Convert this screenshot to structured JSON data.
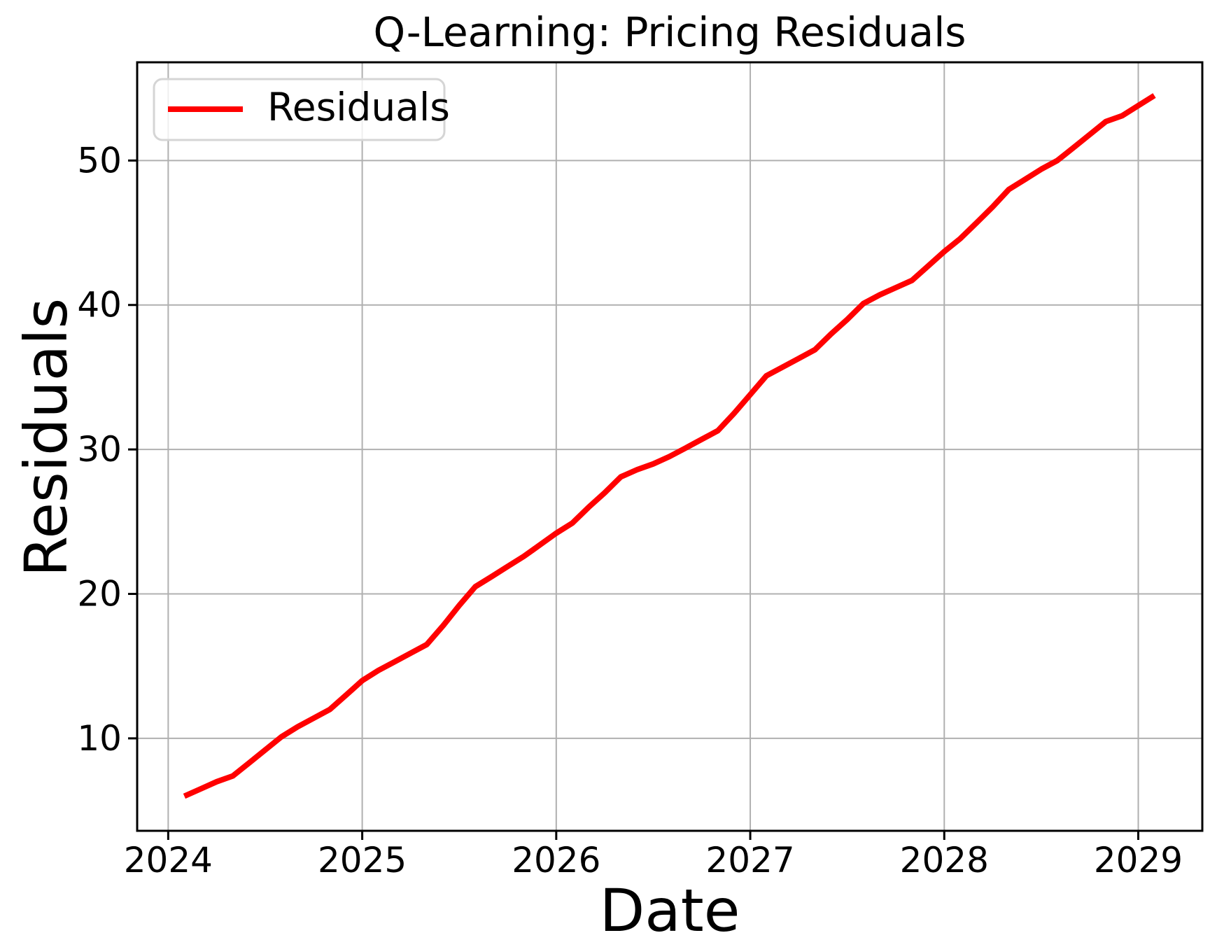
{
  "title": "Q-Learning: Pricing Residuals",
  "x_axis_label": "Date",
  "y_axis_label": "Residuals",
  "legend": {
    "position": "upper left",
    "entries": [
      {
        "label": "Residuals",
        "color": "#ff0000"
      }
    ]
  },
  "colors": {
    "line": "#ff0000",
    "grid": "#b0b0b0",
    "frame": "#000000",
    "background": "#ffffff",
    "legend_border": "#d5d5d5",
    "text": "#000000"
  },
  "chart_data": {
    "type": "line",
    "title": "Q-Learning: Pricing Residuals",
    "xlabel": "Date",
    "ylabel": "Residuals",
    "grid": true,
    "legend_position": "upper left",
    "xlim": [
      2023.84,
      2029.33
    ],
    "ylim": [
      3.6,
      56.8
    ],
    "x_ticks": {
      "positions": [
        2024,
        2025,
        2026,
        2027,
        2028,
        2029
      ],
      "labels": [
        "2024",
        "2025",
        "2026",
        "2027",
        "2028",
        "2029"
      ]
    },
    "y_ticks": {
      "positions": [
        10,
        20,
        30,
        40,
        50
      ],
      "labels": [
        "10",
        "20",
        "30",
        "40",
        "50"
      ]
    },
    "series": [
      {
        "name": "Residuals",
        "color": "#ff0000",
        "x": [
          2024.083,
          2024.167,
          2024.25,
          2024.333,
          2024.417,
          2024.5,
          2024.583,
          2024.667,
          2024.75,
          2024.833,
          2024.917,
          2025.0,
          2025.083,
          2025.167,
          2025.25,
          2025.333,
          2025.417,
          2025.5,
          2025.583,
          2025.667,
          2025.75,
          2025.833,
          2025.917,
          2026.0,
          2026.083,
          2026.167,
          2026.25,
          2026.333,
          2026.417,
          2026.5,
          2026.583,
          2026.667,
          2026.75,
          2026.833,
          2026.917,
          2027.0,
          2027.083,
          2027.167,
          2027.25,
          2027.333,
          2027.417,
          2027.5,
          2027.583,
          2027.667,
          2027.75,
          2027.833,
          2027.917,
          2028.0,
          2028.083,
          2028.167,
          2028.25,
          2028.333,
          2028.417,
          2028.5,
          2028.583,
          2028.667,
          2028.75,
          2028.833,
          2028.917,
          2029.0,
          2029.083
        ],
        "values": [
          6.0,
          6.5,
          7.0,
          7.4,
          8.3,
          9.2,
          10.1,
          10.8,
          11.4,
          12.0,
          13.0,
          14.0,
          14.7,
          15.3,
          15.9,
          16.5,
          17.8,
          19.2,
          20.5,
          21.2,
          21.9,
          22.6,
          23.4,
          24.2,
          24.9,
          26.0,
          27.0,
          28.1,
          28.6,
          29.0,
          29.5,
          30.1,
          30.7,
          31.3,
          32.5,
          33.8,
          35.1,
          35.7,
          36.3,
          36.9,
          38.0,
          39.0,
          40.1,
          40.7,
          41.2,
          41.7,
          42.7,
          43.7,
          44.6,
          45.7,
          46.8,
          48.0,
          48.7,
          49.4,
          50.0,
          50.9,
          51.8,
          52.7,
          53.1,
          53.8,
          54.5
        ]
      }
    ]
  }
}
